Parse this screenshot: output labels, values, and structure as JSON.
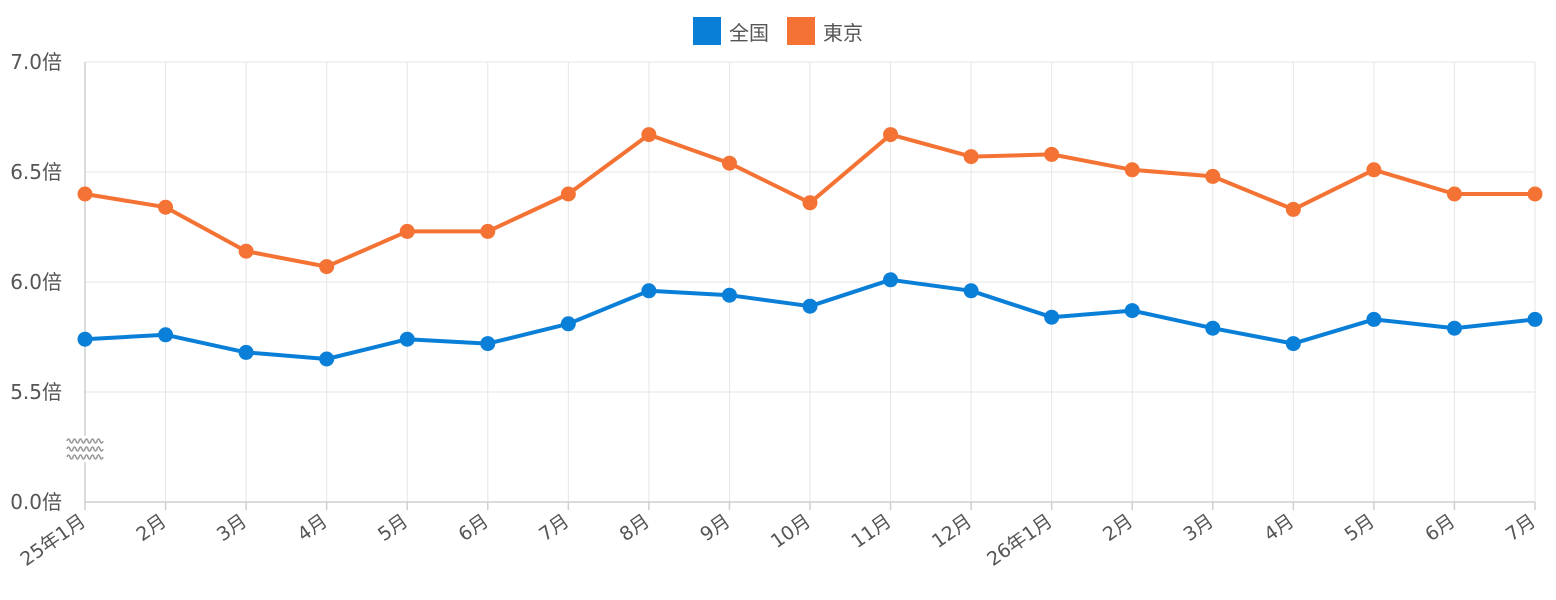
{
  "legend": [
    {
      "name": "全国",
      "color": "#0a7fd8"
    },
    {
      "name": "東京",
      "color": "#f47334"
    }
  ],
  "chart_data": {
    "type": "line",
    "categories": [
      "25年1月",
      "2月",
      "3月",
      "4月",
      "5月",
      "6月",
      "7月",
      "8月",
      "9月",
      "10月",
      "11月",
      "12月",
      "26年1月",
      "2月",
      "3月",
      "4月",
      "5月",
      "6月",
      "7月"
    ],
    "series": [
      {
        "name": "全国",
        "color": "#0a7fd8",
        "values": [
          5.74,
          5.76,
          5.68,
          5.65,
          5.74,
          5.72,
          5.81,
          5.96,
          5.94,
          5.89,
          6.01,
          5.96,
          5.84,
          5.87,
          5.79,
          5.72,
          5.83,
          5.79,
          5.83
        ]
      },
      {
        "name": "東京",
        "color": "#f47334",
        "values": [
          6.4,
          6.34,
          6.14,
          6.07,
          6.23,
          6.23,
          6.4,
          6.67,
          6.54,
          6.36,
          6.67,
          6.57,
          6.58,
          6.51,
          6.48,
          6.33,
          6.51,
          6.4,
          6.4
        ]
      }
    ],
    "y_ticks": [
      "0.0倍",
      "5.5倍",
      "6.0倍",
      "6.5倍",
      "7.0倍"
    ],
    "y_axis_break": true,
    "ylim": [
      5.5,
      7.0
    ],
    "grid": true,
    "legend_position": "top-center"
  }
}
